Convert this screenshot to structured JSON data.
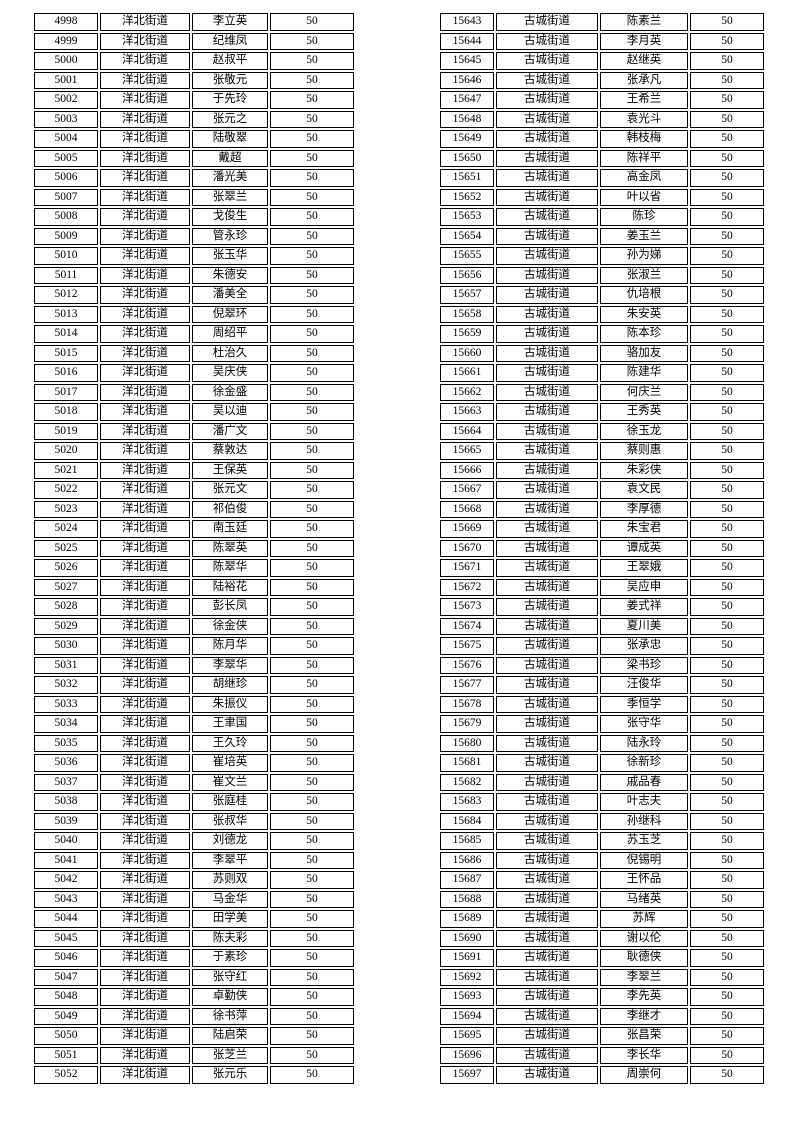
{
  "page": {
    "background_color": "#ffffff",
    "text_color": "#000000",
    "border_color": "#000000"
  },
  "tables": [
    {
      "name": "left-roster",
      "district_label": "洋北街道",
      "rows": [
        {
          "id": "4998",
          "district": "洋北街道",
          "name": "李立英",
          "value": "50"
        },
        {
          "id": "4999",
          "district": "洋北街道",
          "name": "纪维凤",
          "value": "50"
        },
        {
          "id": "5000",
          "district": "洋北街道",
          "name": "赵叔平",
          "value": "50"
        },
        {
          "id": "5001",
          "district": "洋北街道",
          "name": "张敬元",
          "value": "50"
        },
        {
          "id": "5002",
          "district": "洋北街道",
          "name": "于先玲",
          "value": "50"
        },
        {
          "id": "5003",
          "district": "洋北街道",
          "name": "张元之",
          "value": "50"
        },
        {
          "id": "5004",
          "district": "洋北街道",
          "name": "陆敬翠",
          "value": "50"
        },
        {
          "id": "5005",
          "district": "洋北街道",
          "name": "戴超",
          "value": "50"
        },
        {
          "id": "5006",
          "district": "洋北街道",
          "name": "潘光美",
          "value": "50"
        },
        {
          "id": "5007",
          "district": "洋北街道",
          "name": "张翠兰",
          "value": "50"
        },
        {
          "id": "5008",
          "district": "洋北街道",
          "name": "戈俊生",
          "value": "50"
        },
        {
          "id": "5009",
          "district": "洋北街道",
          "name": "管永珍",
          "value": "50"
        },
        {
          "id": "5010",
          "district": "洋北街道",
          "name": "张玉华",
          "value": "50"
        },
        {
          "id": "5011",
          "district": "洋北街道",
          "name": "朱德安",
          "value": "50"
        },
        {
          "id": "5012",
          "district": "洋北街道",
          "name": "潘美全",
          "value": "50"
        },
        {
          "id": "5013",
          "district": "洋北街道",
          "name": "倪翠环",
          "value": "50"
        },
        {
          "id": "5014",
          "district": "洋北街道",
          "name": "周绍平",
          "value": "50"
        },
        {
          "id": "5015",
          "district": "洋北街道",
          "name": "杜治久",
          "value": "50"
        },
        {
          "id": "5016",
          "district": "洋北街道",
          "name": "吴庆侠",
          "value": "50"
        },
        {
          "id": "5017",
          "district": "洋北街道",
          "name": "徐金盛",
          "value": "50"
        },
        {
          "id": "5018",
          "district": "洋北街道",
          "name": "吴以迪",
          "value": "50"
        },
        {
          "id": "5019",
          "district": "洋北街道",
          "name": "潘广文",
          "value": "50"
        },
        {
          "id": "5020",
          "district": "洋北街道",
          "name": "蔡敦达",
          "value": "50"
        },
        {
          "id": "5021",
          "district": "洋北街道",
          "name": "王保英",
          "value": "50"
        },
        {
          "id": "5022",
          "district": "洋北街道",
          "name": "张元文",
          "value": "50"
        },
        {
          "id": "5023",
          "district": "洋北街道",
          "name": "祁伯俊",
          "value": "50"
        },
        {
          "id": "5024",
          "district": "洋北街道",
          "name": "南玉廷",
          "value": "50"
        },
        {
          "id": "5025",
          "district": "洋北街道",
          "name": "陈翠英",
          "value": "50"
        },
        {
          "id": "5026",
          "district": "洋北街道",
          "name": "陈翠华",
          "value": "50"
        },
        {
          "id": "5027",
          "district": "洋北街道",
          "name": "陆裕花",
          "value": "50"
        },
        {
          "id": "5028",
          "district": "洋北街道",
          "name": "彭长凤",
          "value": "50"
        },
        {
          "id": "5029",
          "district": "洋北街道",
          "name": "徐金侠",
          "value": "50"
        },
        {
          "id": "5030",
          "district": "洋北街道",
          "name": "陈月华",
          "value": "50"
        },
        {
          "id": "5031",
          "district": "洋北街道",
          "name": "李翠华",
          "value": "50"
        },
        {
          "id": "5032",
          "district": "洋北街道",
          "name": "胡继珍",
          "value": "50"
        },
        {
          "id": "5033",
          "district": "洋北街道",
          "name": "朱振仪",
          "value": "50"
        },
        {
          "id": "5034",
          "district": "洋北街道",
          "name": "王聿国",
          "value": "50"
        },
        {
          "id": "5035",
          "district": "洋北街道",
          "name": "王久玲",
          "value": "50"
        },
        {
          "id": "5036",
          "district": "洋北街道",
          "name": "崔培英",
          "value": "50"
        },
        {
          "id": "5037",
          "district": "洋北街道",
          "name": "崔文兰",
          "value": "50"
        },
        {
          "id": "5038",
          "district": "洋北街道",
          "name": "张庭桂",
          "value": "50"
        },
        {
          "id": "5039",
          "district": "洋北街道",
          "name": "张叔华",
          "value": "50"
        },
        {
          "id": "5040",
          "district": "洋北街道",
          "name": "刘德龙",
          "value": "50"
        },
        {
          "id": "5041",
          "district": "洋北街道",
          "name": "李翠平",
          "value": "50"
        },
        {
          "id": "5042",
          "district": "洋北街道",
          "name": "苏则双",
          "value": "50"
        },
        {
          "id": "5043",
          "district": "洋北街道",
          "name": "马金华",
          "value": "50"
        },
        {
          "id": "5044",
          "district": "洋北街道",
          "name": "田学美",
          "value": "50"
        },
        {
          "id": "5045",
          "district": "洋北街道",
          "name": "陈夫彩",
          "value": "50"
        },
        {
          "id": "5046",
          "district": "洋北街道",
          "name": "于素珍",
          "value": "50"
        },
        {
          "id": "5047",
          "district": "洋北街道",
          "name": "张守红",
          "value": "50"
        },
        {
          "id": "5048",
          "district": "洋北街道",
          "name": "卓勤侠",
          "value": "50"
        },
        {
          "id": "5049",
          "district": "洋北街道",
          "name": "徐书萍",
          "value": "50"
        },
        {
          "id": "5050",
          "district": "洋北街道",
          "name": "陆启荣",
          "value": "50"
        },
        {
          "id": "5051",
          "district": "洋北街道",
          "name": "张芝兰",
          "value": "50"
        },
        {
          "id": "5052",
          "district": "洋北街道",
          "name": "张元乐",
          "value": "50"
        }
      ]
    },
    {
      "name": "right-roster",
      "district_label": "古城街道",
      "rows": [
        {
          "id": "15643",
          "district": "古城街道",
          "name": "陈素兰",
          "value": "50"
        },
        {
          "id": "15644",
          "district": "古城街道",
          "name": "李月英",
          "value": "50"
        },
        {
          "id": "15645",
          "district": "古城街道",
          "name": "赵继英",
          "value": "50"
        },
        {
          "id": "15646",
          "district": "古城街道",
          "name": "张承凡",
          "value": "50"
        },
        {
          "id": "15647",
          "district": "古城街道",
          "name": "王希兰",
          "value": "50"
        },
        {
          "id": "15648",
          "district": "古城街道",
          "name": "袁光斗",
          "value": "50"
        },
        {
          "id": "15649",
          "district": "古城街道",
          "name": "韩枝梅",
          "value": "50"
        },
        {
          "id": "15650",
          "district": "古城街道",
          "name": "陈祥平",
          "value": "50"
        },
        {
          "id": "15651",
          "district": "古城街道",
          "name": "高金凤",
          "value": "50"
        },
        {
          "id": "15652",
          "district": "古城街道",
          "name": "叶以省",
          "value": "50"
        },
        {
          "id": "15653",
          "district": "古城街道",
          "name": "陈珍",
          "value": "50"
        },
        {
          "id": "15654",
          "district": "古城街道",
          "name": "姜玉兰",
          "value": "50"
        },
        {
          "id": "15655",
          "district": "古城街道",
          "name": "孙为娣",
          "value": "50"
        },
        {
          "id": "15656",
          "district": "古城街道",
          "name": "张淑兰",
          "value": "50"
        },
        {
          "id": "15657",
          "district": "古城街道",
          "name": "仇培根",
          "value": "50"
        },
        {
          "id": "15658",
          "district": "古城街道",
          "name": "朱安英",
          "value": "50"
        },
        {
          "id": "15659",
          "district": "古城街道",
          "name": "陈本珍",
          "value": "50"
        },
        {
          "id": "15660",
          "district": "古城街道",
          "name": "骆加友",
          "value": "50"
        },
        {
          "id": "15661",
          "district": "古城街道",
          "name": "陈建华",
          "value": "50"
        },
        {
          "id": "15662",
          "district": "古城街道",
          "name": "何庆兰",
          "value": "50"
        },
        {
          "id": "15663",
          "district": "古城街道",
          "name": "王秀英",
          "value": "50"
        },
        {
          "id": "15664",
          "district": "古城街道",
          "name": "徐玉龙",
          "value": "50"
        },
        {
          "id": "15665",
          "district": "古城街道",
          "name": "蔡则惠",
          "value": "50"
        },
        {
          "id": "15666",
          "district": "古城街道",
          "name": "朱彩侠",
          "value": "50"
        },
        {
          "id": "15667",
          "district": "古城街道",
          "name": "袁文民",
          "value": "50"
        },
        {
          "id": "15668",
          "district": "古城街道",
          "name": "李厚德",
          "value": "50"
        },
        {
          "id": "15669",
          "district": "古城街道",
          "name": "朱宝君",
          "value": "50"
        },
        {
          "id": "15670",
          "district": "古城街道",
          "name": "谭成英",
          "value": "50"
        },
        {
          "id": "15671",
          "district": "古城街道",
          "name": "王翠娥",
          "value": "50"
        },
        {
          "id": "15672",
          "district": "古城街道",
          "name": "吴应申",
          "value": "50"
        },
        {
          "id": "15673",
          "district": "古城街道",
          "name": "姜式祥",
          "value": "50"
        },
        {
          "id": "15674",
          "district": "古城街道",
          "name": "夏川美",
          "value": "50"
        },
        {
          "id": "15675",
          "district": "古城街道",
          "name": "张承忠",
          "value": "50"
        },
        {
          "id": "15676",
          "district": "古城街道",
          "name": "梁书珍",
          "value": "50"
        },
        {
          "id": "15677",
          "district": "古城街道",
          "name": "汪俊华",
          "value": "50"
        },
        {
          "id": "15678",
          "district": "古城街道",
          "name": "季恒学",
          "value": "50"
        },
        {
          "id": "15679",
          "district": "古城街道",
          "name": "张守华",
          "value": "50"
        },
        {
          "id": "15680",
          "district": "古城街道",
          "name": "陆永玲",
          "value": "50"
        },
        {
          "id": "15681",
          "district": "古城街道",
          "name": "徐新珍",
          "value": "50"
        },
        {
          "id": "15682",
          "district": "古城街道",
          "name": "戚品春",
          "value": "50"
        },
        {
          "id": "15683",
          "district": "古城街道",
          "name": "叶志夫",
          "value": "50"
        },
        {
          "id": "15684",
          "district": "古城街道",
          "name": "孙继科",
          "value": "50"
        },
        {
          "id": "15685",
          "district": "古城街道",
          "name": "苏玉芝",
          "value": "50"
        },
        {
          "id": "15686",
          "district": "古城街道",
          "name": "倪锡明",
          "value": "50"
        },
        {
          "id": "15687",
          "district": "古城街道",
          "name": "王怀品",
          "value": "50"
        },
        {
          "id": "15688",
          "district": "古城街道",
          "name": "马绪英",
          "value": "50"
        },
        {
          "id": "15689",
          "district": "古城街道",
          "name": "苏辉",
          "value": "50"
        },
        {
          "id": "15690",
          "district": "古城街道",
          "name": "谢以伦",
          "value": "50"
        },
        {
          "id": "15691",
          "district": "古城街道",
          "name": "耿德侠",
          "value": "50"
        },
        {
          "id": "15692",
          "district": "古城街道",
          "name": "李翠兰",
          "value": "50"
        },
        {
          "id": "15693",
          "district": "古城街道",
          "name": "李先英",
          "value": "50"
        },
        {
          "id": "15694",
          "district": "古城街道",
          "name": "李继才",
          "value": "50"
        },
        {
          "id": "15695",
          "district": "古城街道",
          "name": "张昌荣",
          "value": "50"
        },
        {
          "id": "15696",
          "district": "古城街道",
          "name": "李长华",
          "value": "50"
        },
        {
          "id": "15697",
          "district": "古城街道",
          "name": "周崇何",
          "value": "50"
        }
      ]
    }
  ]
}
